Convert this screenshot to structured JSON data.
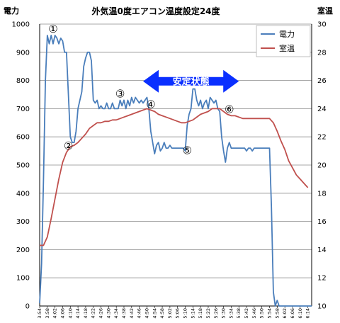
{
  "chart_data": {
    "type": "line",
    "title": "外気温0度エアコン温度設定24度",
    "ylabel_left": "電力",
    "ylabel_right": "室温",
    "ylim_left": [
      0,
      1000
    ],
    "yticks_left": [
      0,
      100,
      200,
      300,
      400,
      500,
      600,
      700,
      800,
      900,
      1000
    ],
    "ylim_right": [
      10,
      30
    ],
    "yticks_right": [
      10,
      12,
      14,
      16,
      18,
      20,
      22,
      24,
      26,
      28,
      30
    ],
    "x_ticks": [
      "3:54",
      "3:58",
      "4:02",
      "4:06",
      "4:10",
      "4:14",
      "4:18",
      "4:22",
      "4:26",
      "4:30",
      "4:34",
      "4:38",
      "4:42",
      "4:46",
      "4:50",
      "4:54",
      "4:58",
      "5:02",
      "5:06",
      "5:10",
      "5:14",
      "5:18",
      "5:22",
      "5:26",
      "5:30",
      "5:34",
      "5:38",
      "5:42",
      "5:46",
      "5:50",
      "5:54",
      "5:58",
      "6:02",
      "6:06",
      "6:10",
      "6:14"
    ],
    "x_start": "3:54",
    "x_end": "6:16",
    "grid": true,
    "legend_position": "top-right",
    "series": [
      {
        "name": "電力",
        "axis": "left",
        "color": "#4a7ebb",
        "points": [
          [
            "3:54",
            10
          ],
          [
            "3:55",
            150
          ],
          [
            "3:56",
            450
          ],
          [
            "3:57",
            800
          ],
          [
            "3:58",
            960
          ],
          [
            "3:59",
            930
          ],
          [
            "4:00",
            960
          ],
          [
            "4:01",
            930
          ],
          [
            "4:02",
            960
          ],
          [
            "4:03",
            950
          ],
          [
            "4:04",
            930
          ],
          [
            "4:05",
            950
          ],
          [
            "4:06",
            940
          ],
          [
            "4:07",
            900
          ],
          [
            "4:08",
            900
          ],
          [
            "4:09",
            750
          ],
          [
            "4:10",
            600
          ],
          [
            "4:11",
            580
          ],
          [
            "4:12",
            580
          ],
          [
            "4:13",
            620
          ],
          [
            "4:14",
            700
          ],
          [
            "4:15",
            730
          ],
          [
            "4:16",
            760
          ],
          [
            "4:17",
            850
          ],
          [
            "4:18",
            880
          ],
          [
            "4:19",
            900
          ],
          [
            "4:20",
            900
          ],
          [
            "4:21",
            870
          ],
          [
            "4:22",
            730
          ],
          [
            "4:23",
            720
          ],
          [
            "4:24",
            730
          ],
          [
            "4:25",
            700
          ],
          [
            "4:26",
            710
          ],
          [
            "4:27",
            700
          ],
          [
            "4:28",
            700
          ],
          [
            "4:29",
            720
          ],
          [
            "4:30",
            700
          ],
          [
            "4:31",
            700
          ],
          [
            "4:32",
            720
          ],
          [
            "4:33",
            700
          ],
          [
            "4:34",
            700
          ],
          [
            "4:35",
            700
          ],
          [
            "4:36",
            730
          ],
          [
            "4:37",
            710
          ],
          [
            "4:38",
            730
          ],
          [
            "4:39",
            700
          ],
          [
            "4:40",
            730
          ],
          [
            "4:41",
            710
          ],
          [
            "4:42",
            740
          ],
          [
            "4:43",
            720
          ],
          [
            "4:44",
            740
          ],
          [
            "4:45",
            730
          ],
          [
            "4:46",
            720
          ],
          [
            "4:47",
            730
          ],
          [
            "4:48",
            720
          ],
          [
            "4:49",
            730
          ],
          [
            "4:50",
            740
          ],
          [
            "4:51",
            700
          ],
          [
            "4:52",
            620
          ],
          [
            "4:53",
            580
          ],
          [
            "4:54",
            540
          ],
          [
            "4:55",
            570
          ],
          [
            "4:56",
            580
          ],
          [
            "4:57",
            550
          ],
          [
            "4:58",
            560
          ],
          [
            "4:59",
            580
          ],
          [
            "5:00",
            560
          ],
          [
            "5:01",
            560
          ],
          [
            "5:02",
            570
          ],
          [
            "5:03",
            560
          ],
          [
            "5:04",
            560
          ],
          [
            "5:05",
            560
          ],
          [
            "5:06",
            560
          ],
          [
            "5:07",
            560
          ],
          [
            "5:08",
            560
          ],
          [
            "5:09",
            560
          ],
          [
            "5:10",
            550
          ],
          [
            "5:11",
            640
          ],
          [
            "5:12",
            680
          ],
          [
            "5:13",
            700
          ],
          [
            "5:14",
            770
          ],
          [
            "5:15",
            770
          ],
          [
            "5:16",
            730
          ],
          [
            "5:17",
            710
          ],
          [
            "5:18",
            730
          ],
          [
            "5:19",
            700
          ],
          [
            "5:20",
            720
          ],
          [
            "5:21",
            730
          ],
          [
            "5:22",
            700
          ],
          [
            "5:23",
            740
          ],
          [
            "5:24",
            730
          ],
          [
            "5:25",
            720
          ],
          [
            "5:26",
            730
          ],
          [
            "5:27",
            700
          ],
          [
            "5:28",
            690
          ],
          [
            "5:29",
            600
          ],
          [
            "5:30",
            550
          ],
          [
            "5:31",
            510
          ],
          [
            "5:32",
            560
          ],
          [
            "5:33",
            580
          ],
          [
            "5:34",
            560
          ],
          [
            "5:35",
            560
          ],
          [
            "5:36",
            560
          ],
          [
            "5:37",
            560
          ],
          [
            "5:38",
            560
          ],
          [
            "5:39",
            560
          ],
          [
            "5:40",
            560
          ],
          [
            "5:41",
            560
          ],
          [
            "5:42",
            550
          ],
          [
            "5:43",
            560
          ],
          [
            "5:44",
            560
          ],
          [
            "5:45",
            550
          ],
          [
            "5:46",
            560
          ],
          [
            "5:47",
            560
          ],
          [
            "5:48",
            560
          ],
          [
            "5:49",
            560
          ],
          [
            "5:50",
            560
          ],
          [
            "5:51",
            560
          ],
          [
            "5:52",
            560
          ],
          [
            "5:53",
            560
          ],
          [
            "5:54",
            560
          ],
          [
            "5:55",
            350
          ],
          [
            "5:56",
            50
          ],
          [
            "5:57",
            0
          ],
          [
            "5:58",
            20
          ],
          [
            "5:59",
            0
          ],
          [
            "6:00",
            0
          ],
          [
            "6:04",
            0
          ],
          [
            "6:08",
            0
          ],
          [
            "6:12",
            0
          ],
          [
            "6:16",
            0
          ]
        ]
      },
      {
        "name": "室温",
        "axis": "right",
        "color": "#c0504d",
        "points": [
          [
            "3:54",
            14.3
          ],
          [
            "3:56",
            14.3
          ],
          [
            "3:58",
            14.9
          ],
          [
            "4:00",
            16.2
          ],
          [
            "4:02",
            17.6
          ],
          [
            "4:04",
            19.0
          ],
          [
            "4:06",
            20.2
          ],
          [
            "4:08",
            20.9
          ],
          [
            "4:10",
            21.3
          ],
          [
            "4:12",
            21.4
          ],
          [
            "4:14",
            21.6
          ],
          [
            "4:16",
            21.9
          ],
          [
            "4:18",
            22.2
          ],
          [
            "4:20",
            22.6
          ],
          [
            "4:22",
            22.8
          ],
          [
            "4:24",
            23.0
          ],
          [
            "4:26",
            23.0
          ],
          [
            "4:28",
            23.1
          ],
          [
            "4:30",
            23.1
          ],
          [
            "4:32",
            23.2
          ],
          [
            "4:34",
            23.2
          ],
          [
            "4:36",
            23.3
          ],
          [
            "4:38",
            23.4
          ],
          [
            "4:40",
            23.5
          ],
          [
            "4:42",
            23.6
          ],
          [
            "4:44",
            23.7
          ],
          [
            "4:46",
            23.8
          ],
          [
            "4:48",
            23.9
          ],
          [
            "4:50",
            24.0
          ],
          [
            "4:52",
            23.9
          ],
          [
            "4:54",
            23.8
          ],
          [
            "4:56",
            23.6
          ],
          [
            "4:58",
            23.5
          ],
          [
            "5:00",
            23.4
          ],
          [
            "5:02",
            23.3
          ],
          [
            "5:04",
            23.2
          ],
          [
            "5:06",
            23.1
          ],
          [
            "5:08",
            23.0
          ],
          [
            "5:10",
            23.0
          ],
          [
            "5:12",
            23.1
          ],
          [
            "5:14",
            23.2
          ],
          [
            "5:16",
            23.4
          ],
          [
            "5:18",
            23.6
          ],
          [
            "5:20",
            23.7
          ],
          [
            "5:22",
            23.8
          ],
          [
            "5:24",
            24.0
          ],
          [
            "5:26",
            24.0
          ],
          [
            "5:28",
            24.0
          ],
          [
            "5:30",
            23.8
          ],
          [
            "5:32",
            23.6
          ],
          [
            "5:34",
            23.5
          ],
          [
            "5:36",
            23.5
          ],
          [
            "5:38",
            23.4
          ],
          [
            "5:40",
            23.3
          ],
          [
            "5:42",
            23.3
          ],
          [
            "5:44",
            23.3
          ],
          [
            "5:46",
            23.3
          ],
          [
            "5:48",
            23.3
          ],
          [
            "5:50",
            23.3
          ],
          [
            "5:52",
            23.3
          ],
          [
            "5:54",
            23.3
          ],
          [
            "5:56",
            23.0
          ],
          [
            "5:58",
            22.4
          ],
          [
            "6:00",
            21.7
          ],
          [
            "6:02",
            21.1
          ],
          [
            "6:04",
            20.3
          ],
          [
            "6:06",
            19.8
          ],
          [
            "6:08",
            19.3
          ],
          [
            "6:10",
            19.0
          ],
          [
            "6:12",
            18.7
          ],
          [
            "6:14",
            18.4
          ]
        ]
      }
    ],
    "legend": [
      {
        "label": "電力",
        "color": "#4a7ebb"
      },
      {
        "label": "室温",
        "color": "#c0504d"
      }
    ],
    "banner": {
      "text": "安定状態",
      "from": "4:48",
      "to": "5:38",
      "value_left": 797,
      "color": "#0a2fff"
    },
    "annotations": [
      {
        "text": "①",
        "x": "4:01",
        "y_left": 983
      },
      {
        "text": "②",
        "x": "4:09",
        "y_left": 568
      },
      {
        "text": "③",
        "x": "4:36",
        "y_left": 752
      },
      {
        "text": "④",
        "x": "4:52",
        "y_left": 715
      },
      {
        "text": "⑤",
        "x": "5:11",
        "y_left": 552
      },
      {
        "text": "⑥",
        "x": "5:33",
        "y_left": 697
      }
    ]
  }
}
